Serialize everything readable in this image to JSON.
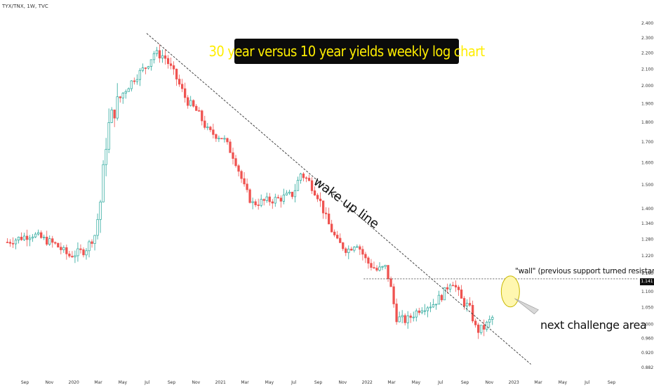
{
  "chart_data": {
    "type": "candlestick",
    "symbol_label": "TYX/TNX, 1W, TVC",
    "title": "30 year versus 10 year yields weekly log chart",
    "y_scale": "log",
    "ylim": [
      0.88,
      2.4
    ],
    "y_ticks": [
      "2.400",
      "2.300",
      "2.200",
      "2.100",
      "2.000",
      "1.900",
      "1.800",
      "1.700",
      "1.600",
      "1.500",
      "1.400",
      "1.340",
      "1.280",
      "1.220",
      "1.160",
      "1.100",
      "1.050",
      "1.000",
      "0.960",
      "0.920",
      "0.882"
    ],
    "x_ticks": [
      "Sep",
      "Nov",
      "2020",
      "Mar",
      "May",
      "Jul",
      "Sep",
      "Nov",
      "2021",
      "Mar",
      "May",
      "Jul",
      "Sep",
      "Nov",
      "2022",
      "Mar",
      "May",
      "Jul",
      "Sep",
      "Nov",
      "2023",
      "Mar",
      "May",
      "Jul",
      "Sep"
    ],
    "current_value": "1.141",
    "grid": false,
    "up_color": "#26a69a",
    "down_color": "#ef5350",
    "trendline": {
      "label": "wake up line",
      "from": [
        2020.5,
        2.33
      ],
      "to": [
        2023.12,
        0.89
      ]
    },
    "horizontal_line": {
      "label": "\"wall\" (previous support turned resistance)",
      "value": 1.141
    },
    "annotation_region": {
      "label": "next challenge area",
      "center": [
        2022.98,
        1.1
      ]
    },
    "path_points": [
      [
        2019.55,
        1.27
      ],
      [
        2019.72,
        1.3
      ],
      [
        2019.88,
        1.26
      ],
      [
        2019.97,
        1.22
      ],
      [
        2020.08,
        1.24
      ],
      [
        2020.15,
        1.3
      ],
      [
        2020.19,
        1.45
      ],
      [
        2020.23,
        1.75
      ],
      [
        2020.27,
        1.85
      ],
      [
        2020.33,
        1.95
      ],
      [
        2020.42,
        2.05
      ],
      [
        2020.5,
        2.12
      ],
      [
        2020.55,
        2.2
      ],
      [
        2020.62,
        2.18
      ],
      [
        2020.7,
        2.05
      ],
      [
        2020.77,
        1.92
      ],
      [
        2020.85,
        1.85
      ],
      [
        2020.92,
        1.75
      ],
      [
        2021.02,
        1.72
      ],
      [
        2021.1,
        1.62
      ],
      [
        2021.17,
        1.48
      ],
      [
        2021.22,
        1.42
      ],
      [
        2021.3,
        1.43
      ],
      [
        2021.4,
        1.44
      ],
      [
        2021.5,
        1.46
      ],
      [
        2021.55,
        1.55
      ],
      [
        2021.6,
        1.52
      ],
      [
        2021.67,
        1.45
      ],
      [
        2021.73,
        1.35
      ],
      [
        2021.8,
        1.27
      ],
      [
        2021.87,
        1.24
      ],
      [
        2021.93,
        1.27
      ],
      [
        2022.0,
        1.2
      ],
      [
        2022.07,
        1.17
      ],
      [
        2022.13,
        1.18
      ],
      [
        2022.17,
        1.1
      ],
      [
        2022.2,
        1.02
      ],
      [
        2022.27,
        1.01
      ],
      [
        2022.37,
        1.05
      ],
      [
        2022.45,
        1.06
      ],
      [
        2022.52,
        1.09
      ],
      [
        2022.58,
        1.14
      ],
      [
        2022.65,
        1.07
      ],
      [
        2022.7,
        1.05
      ],
      [
        2022.75,
        0.98
      ],
      [
        2022.8,
        0.99
      ],
      [
        2022.86,
        1.02
      ]
    ]
  },
  "colors": {
    "background": "#ffffff",
    "title_bg": "#0b0b0b",
    "title_fg": "#ffee00",
    "circle_fill": "#fff7b0",
    "circle_stroke": "#c9b800"
  }
}
